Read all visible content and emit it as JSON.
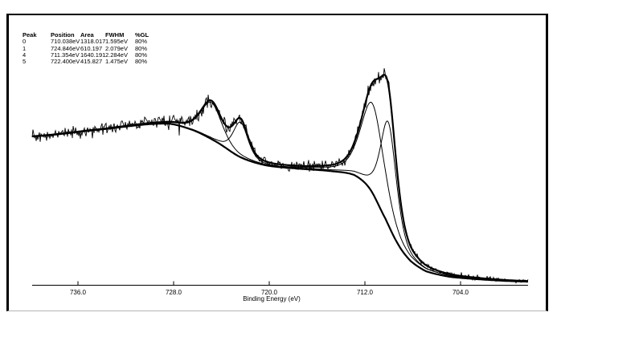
{
  "colors": {
    "line": "#000000",
    "frame_border": "#000000",
    "frame_bottom": "#b4b4b4",
    "background": "#ffffff"
  },
  "fit_table": {
    "headers": [
      "Peak",
      "Position",
      "Area",
      "FWHM",
      "%GL"
    ],
    "rows": [
      [
        "0",
        "710.038eV",
        "1318.017",
        "1.595eV",
        "80%"
      ],
      [
        "1",
        "724.846eV",
        "610.197",
        "2.079eV",
        "80%"
      ],
      [
        "4",
        "711.354eV",
        "1640.191",
        "2.284eV",
        "80%"
      ],
      [
        "5",
        "722.400eV",
        "415.827",
        "1.475eV",
        "80%"
      ]
    ]
  },
  "chart_data": {
    "type": "line",
    "title": "",
    "xlabel": "Binding Energy (eV)",
    "ylabel": "",
    "grid": false,
    "axis_reversed": true,
    "x_axis": {
      "ticks": [
        736.0,
        728.0,
        720.0,
        712.0,
        704.0
      ],
      "tick_labels": [
        "736.0",
        "728.0",
        "720.0",
        "712.0",
        "704.0"
      ],
      "range_eV": [
        739.8,
        698.4
      ]
    },
    "series_names": [
      "measured spectrum",
      "fit envelope",
      "background",
      "peak components"
    ],
    "peaks": [
      {
        "id": 0,
        "position_eV": 710.038,
        "area": 1318.017,
        "fwhm_eV": 1.595,
        "gl_percent": 80
      },
      {
        "id": 1,
        "position_eV": 724.846,
        "area": 610.197,
        "fwhm_eV": 2.079,
        "gl_percent": 80
      },
      {
        "id": 4,
        "position_eV": 711.354,
        "area": 1640.191,
        "fwhm_eV": 2.284,
        "gl_percent": 80
      },
      {
        "id": 5,
        "position_eV": 722.4,
        "area": 415.827,
        "fwhm_eV": 1.475,
        "gl_percent": 80
      }
    ],
    "background_curve": [
      [
        739.8,
        185
      ],
      [
        734.5,
        193
      ],
      [
        728.7,
        201
      ],
      [
        726.4,
        193
      ],
      [
        724.4,
        178
      ],
      [
        722.4,
        159
      ],
      [
        720.3,
        149
      ],
      [
        717.7,
        145
      ],
      [
        715.0,
        142
      ],
      [
        712.9,
        137
      ],
      [
        711.6,
        120
      ],
      [
        710.3,
        83
      ],
      [
        709.2,
        50
      ],
      [
        708.2,
        30
      ],
      [
        706.9,
        17
      ],
      [
        704.9,
        10
      ],
      [
        701.5,
        6
      ],
      [
        698.4,
        4
      ]
    ]
  }
}
